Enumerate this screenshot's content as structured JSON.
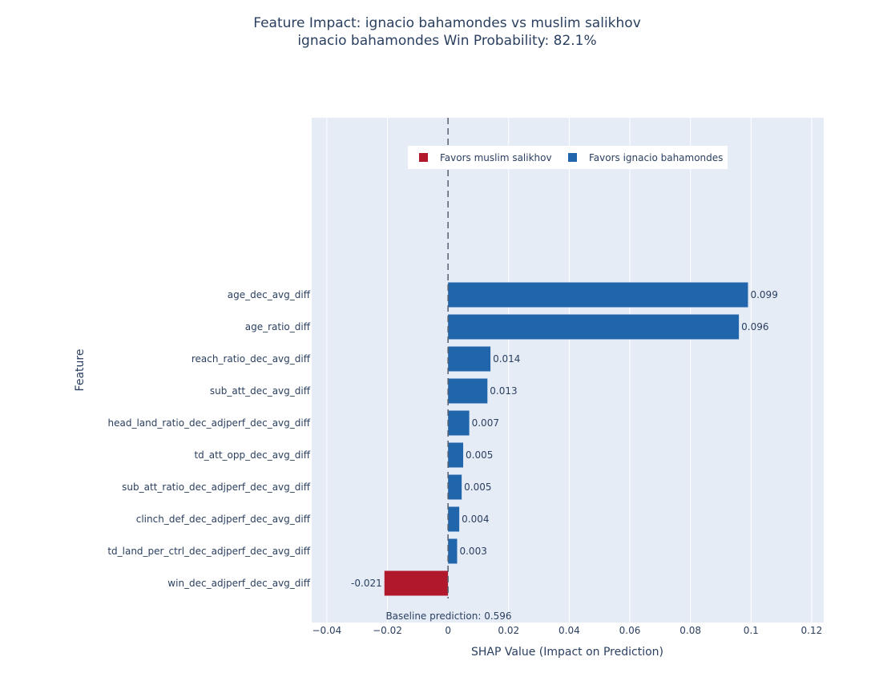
{
  "chart_data": {
    "type": "bar",
    "orientation": "horizontal",
    "title": "Feature Impact: ignacio bahamondes vs muslim salikhov",
    "subtitle": "ignacio bahamondes Win Probability: 82.1%",
    "xlabel": "SHAP Value (Impact on Prediction)",
    "ylabel": "Feature",
    "xlim": [
      -0.045,
      0.124
    ],
    "x_ticks": [
      -0.04,
      -0.02,
      0,
      0.02,
      0.04,
      0.06,
      0.08,
      0.1,
      0.12
    ],
    "x_tick_labels": [
      "−0.04",
      "−0.02",
      "0",
      "0.02",
      "0.04",
      "0.06",
      "0.08",
      "0.1",
      "0.12"
    ],
    "grid": true,
    "legend_position": "top-center",
    "legend": [
      {
        "name": "Favors muslim salikhov",
        "color": "#b2182b"
      },
      {
        "name": "Favors ignacio bahamondes",
        "color": "#2166ac"
      }
    ],
    "bars": [
      {
        "feature": "age_dec_avg_diff",
        "value": 0.099,
        "label": "0.099"
      },
      {
        "feature": "age_ratio_diff",
        "value": 0.096,
        "label": "0.096"
      },
      {
        "feature": "reach_ratio_dec_avg_diff",
        "value": 0.014,
        "label": "0.014"
      },
      {
        "feature": "sub_att_dec_avg_diff",
        "value": 0.013,
        "label": "0.013"
      },
      {
        "feature": "head_land_ratio_dec_adjperf_dec_avg_diff",
        "value": 0.007,
        "label": "0.007"
      },
      {
        "feature": "td_att_opp_dec_avg_diff",
        "value": 0.005,
        "label": "0.005"
      },
      {
        "feature": "sub_att_ratio_dec_adjperf_dec_avg_diff",
        "value": 0.0045,
        "label": "0.005"
      },
      {
        "feature": "clinch_def_dec_adjperf_dec_avg_diff",
        "value": 0.0037,
        "label": "0.004"
      },
      {
        "feature": "td_land_per_ctrl_dec_adjperf_dec_avg_diff",
        "value": 0.003,
        "label": "0.003"
      },
      {
        "feature": "win_dec_adjperf_dec_avg_diff",
        "value": -0.021,
        "label": "-0.021"
      }
    ],
    "annotation": "Baseline prediction: 0.596"
  }
}
